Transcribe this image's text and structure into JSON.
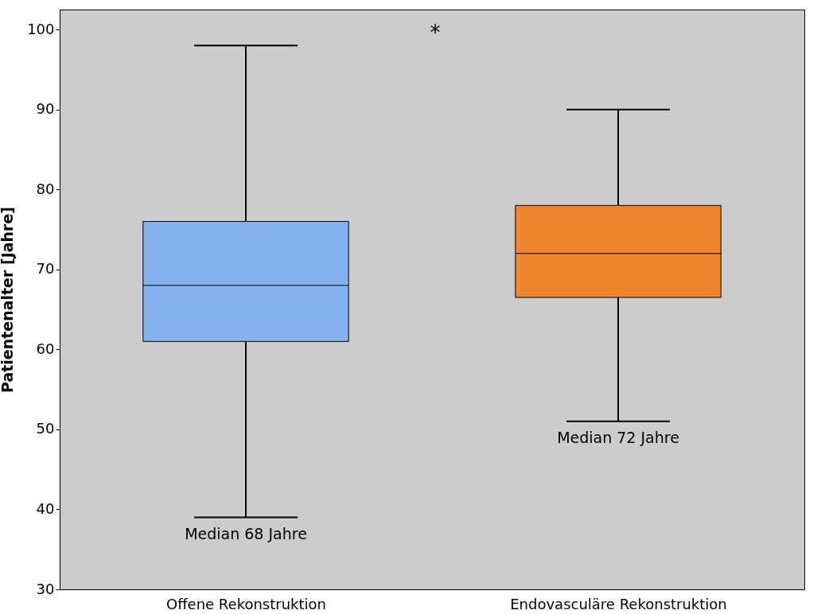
{
  "chart_data": {
    "type": "box",
    "ylabel": "Patientenalter [Jahre]",
    "categories": [
      "Offene Rekonstruktion",
      "Endovasculäre Rekonstruktion"
    ],
    "series": [
      {
        "color": "#85b2ed",
        "boxes": [
          {
            "low": 39,
            "q1": 61,
            "median": 68,
            "q3": 76,
            "high": 98
          },
          null
        ]
      },
      {
        "color": "#f0852d",
        "boxes": [
          null,
          {
            "low": 51,
            "q1": 66.5,
            "median": 72,
            "q3": 78,
            "high": 90
          }
        ]
      }
    ],
    "ylim": [
      30,
      102.5
    ],
    "yticks": [
      30,
      40,
      50,
      60,
      70,
      80,
      90,
      100
    ],
    "grid": false,
    "annotations": [
      {
        "text": "Median 68 Jahre",
        "x": "Offene Rekonstruktion",
        "y": 39
      },
      {
        "text": "Median 72 Jahre",
        "x": "Endovasculäre Rekonstruktion",
        "y": 51
      },
      "*"
    ]
  }
}
